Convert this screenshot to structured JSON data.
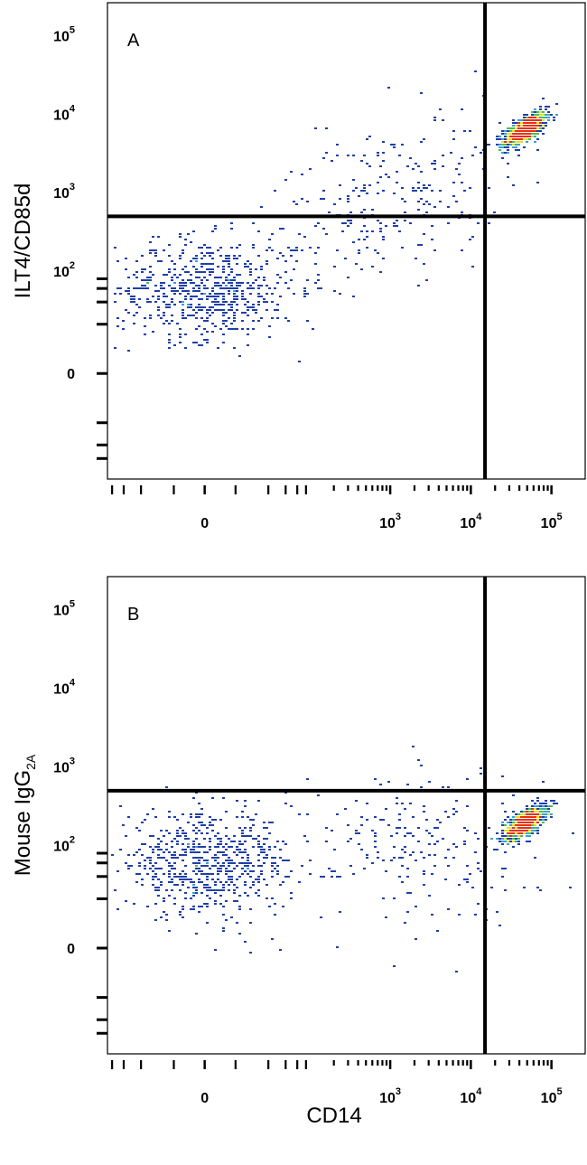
{
  "chart_data": [
    {
      "type": "scatter",
      "panel_label": "A",
      "ylabel": "ILT4/CD85d",
      "xlabel": "",
      "x_scale": "biexponential",
      "y_scale": "biexponential",
      "x_ticks": [
        {
          "value": 0,
          "base": "0",
          "exp": ""
        },
        {
          "value": 1000,
          "base": "10",
          "exp": "3"
        },
        {
          "value": 10000,
          "base": "10",
          "exp": "4"
        },
        {
          "value": 100000,
          "base": "10",
          "exp": "5"
        }
      ],
      "y_ticks": [
        {
          "value": 0,
          "base": "0",
          "exp": ""
        },
        {
          "value": 100,
          "base": "10",
          "exp": "2"
        },
        {
          "value": 1000,
          "base": "10",
          "exp": "3"
        },
        {
          "value": 10000,
          "base": "10",
          "exp": "4"
        },
        {
          "value": 100000,
          "base": "10",
          "exp": "5"
        }
      ],
      "gates": {
        "x": 15000,
        "y": 500
      },
      "populations": [
        {
          "name": "",
          "x_center": 45000,
          "y_center": 6500,
          "count": 900,
          "density": "high"
        },
        {
          "name": "",
          "x_center": 0,
          "y_center": 60,
          "count": 650,
          "density": "medium"
        },
        {
          "name": "",
          "x_center": 800,
          "y_center": 800,
          "count": 260,
          "density": "sparse"
        }
      ]
    },
    {
      "type": "scatter",
      "panel_label": "B",
      "ylabel": "Mouse IgG",
      "ylabel_sub": "2A",
      "xlabel": "CD14",
      "x_scale": "biexponential",
      "y_scale": "biexponential",
      "x_ticks": [
        {
          "value": 0,
          "base": "0",
          "exp": ""
        },
        {
          "value": 1000,
          "base": "10",
          "exp": "3"
        },
        {
          "value": 10000,
          "base": "10",
          "exp": "4"
        },
        {
          "value": 100000,
          "base": "10",
          "exp": "5"
        }
      ],
      "y_ticks": [
        {
          "value": 0,
          "base": "0",
          "exp": ""
        },
        {
          "value": 100,
          "base": "10",
          "exp": "2"
        },
        {
          "value": 1000,
          "base": "10",
          "exp": "3"
        },
        {
          "value": 10000,
          "base": "10",
          "exp": "4"
        },
        {
          "value": 100000,
          "base": "10",
          "exp": "5"
        }
      ],
      "gates": {
        "x": 15000,
        "y": 500
      },
      "populations": [
        {
          "name": "",
          "x_center": 45000,
          "y_center": 200,
          "count": 900,
          "density": "high"
        },
        {
          "name": "",
          "x_center": 0,
          "y_center": 60,
          "count": 650,
          "density": "medium"
        },
        {
          "name": "",
          "x_center": 2000,
          "y_center": 110,
          "count": 220,
          "density": "sparse"
        }
      ]
    }
  ],
  "colors": {
    "low": "#1f3fa8",
    "mid_low": "#3aa0d8",
    "mid": "#4cc04c",
    "mid_high": "#e8e020",
    "high": "#e83010",
    "gate": "#000000"
  }
}
